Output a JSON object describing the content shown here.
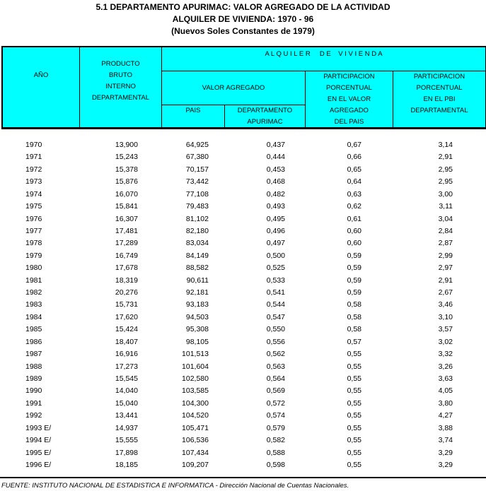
{
  "title": {
    "line1": "5.1  DEPARTAMENTO APURIMAC: VALOR AGREGADO DE LA ACTIVIDAD",
    "line2": "ALQUILER DE VIVIENDA: 1970 - 96",
    "line3": "(Nuevos Soles Constantes de 1979)"
  },
  "header": {
    "year": "AÑO",
    "pbi": [
      "PRODUCTO",
      "BRUTO",
      "INTERNO",
      "DEPARTAMENTAL"
    ],
    "group": "A L Q U I L E R     D E    V I V I E N D A",
    "valor_agregado": "VALOR AGREGADO",
    "pais": "PAIS",
    "departamento": [
      "DEPARTAMENTO",
      "APURIMAC"
    ],
    "part_va": [
      "PARTICIPACION",
      "PORCENTUAL",
      "EN EL VALOR",
      "AGREGADO",
      "DEL PAIS"
    ],
    "part_pbi": [
      "PARTICIPACION",
      "PORCENTUAL",
      "EN EL PBI",
      "DEPARTAMENTAL"
    ]
  },
  "rows": [
    [
      "1970",
      "13,900",
      "64,925",
      "0,437",
      "0,67",
      "3,14"
    ],
    [
      "1971",
      "15,243",
      "67,380",
      "0,444",
      "0,66",
      "2,91"
    ],
    [
      "1972",
      "15,378",
      "70,157",
      "0,453",
      "0,65",
      "2,95"
    ],
    [
      "1973",
      "15,876",
      "73,442",
      "0,468",
      "0,64",
      "2,95"
    ],
    [
      "1974",
      "16,070",
      "77,108",
      "0,482",
      "0,63",
      "3,00"
    ],
    [
      "1975",
      "15,841",
      "79,483",
      "0,493",
      "0,62",
      "3,11"
    ],
    [
      "1976",
      "16,307",
      "81,102",
      "0,495",
      "0,61",
      "3,04"
    ],
    [
      "1977",
      "17,481",
      "82,180",
      "0,496",
      "0,60",
      "2,84"
    ],
    [
      "1978",
      "17,289",
      "83,034",
      "0,497",
      "0,60",
      "2,87"
    ],
    [
      "1979",
      "16,749",
      "84,149",
      "0,500",
      "0,59",
      "2,99"
    ],
    [
      "1980",
      "17,678",
      "88,582",
      "0,525",
      "0,59",
      "2,97"
    ],
    [
      "1981",
      "18,319",
      "90,611",
      "0,533",
      "0,59",
      "2,91"
    ],
    [
      "1982",
      "20,276",
      "92,181",
      "0,541",
      "0,59",
      "2,67"
    ],
    [
      "1983",
      "15,731",
      "93,183",
      "0,544",
      "0,58",
      "3,46"
    ],
    [
      "1984",
      "17,620",
      "94,503",
      "0,547",
      "0,58",
      "3,10"
    ],
    [
      "1985",
      "15,424",
      "95,308",
      "0,550",
      "0,58",
      "3,57"
    ],
    [
      "1986",
      "18,407",
      "98,105",
      "0,556",
      "0,57",
      "3,02"
    ],
    [
      "1987",
      "16,916",
      "101,513",
      "0,562",
      "0,55",
      "3,32"
    ],
    [
      "1988",
      "17,273",
      "101,604",
      "0,563",
      "0,55",
      "3,26"
    ],
    [
      "1989",
      "15,545",
      "102,580",
      "0,564",
      "0,55",
      "3,63"
    ],
    [
      "1990",
      "14,040",
      "103,585",
      "0,569",
      "0,55",
      "4,05"
    ],
    [
      "1991",
      "15,040",
      "104,300",
      "0,572",
      "0,55",
      "3,80"
    ],
    [
      "1992",
      "13,441",
      "104,520",
      "0,574",
      "0,55",
      "4,27"
    ],
    [
      "1993 E/",
      "14,937",
      "105,471",
      "0,579",
      "0,55",
      "3,88"
    ],
    [
      "1994 E/",
      "15,555",
      "106,536",
      "0,582",
      "0,55",
      "3,74"
    ],
    [
      "1995 E/",
      "17,898",
      "107,434",
      "0,588",
      "0,55",
      "3,29"
    ],
    [
      "1996 E/",
      "18,185",
      "109,207",
      "0,598",
      "0,55",
      "3,29"
    ]
  ],
  "source": "FUENTE: INSTITUTO NACIONAL DE ESTADISTICA E INFORMATICA - Dirección Nacional de Cuentas Nacionales.",
  "colors": {
    "header_bg": "#00ffff"
  }
}
